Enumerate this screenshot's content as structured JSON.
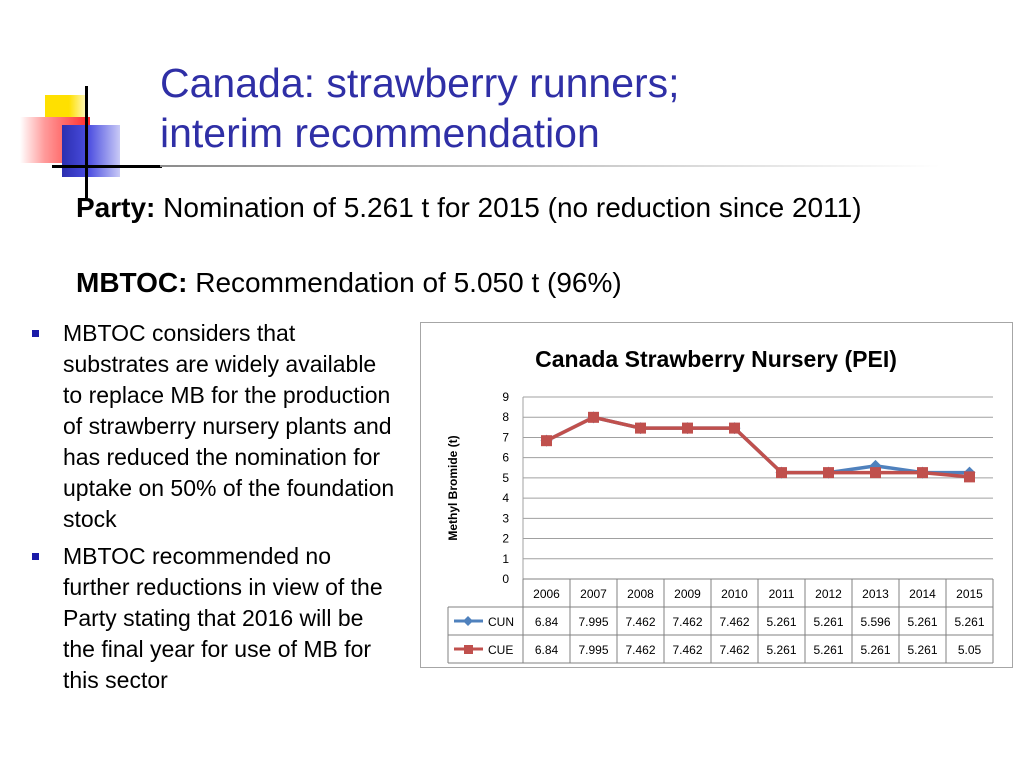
{
  "slide": {
    "title_line1": "Canada: strawberry runners;",
    "title_line2": "interim recommendation",
    "party_label": "Party:",
    "party_text": " Nomination of 5.261 t for 2015 (no reduction since 2011)",
    "mbtoc_label": "MBTOC:",
    "mbtoc_text": " Recommendation of 5.050 t (96%)",
    "bullets": [
      "MBTOC considers that substrates are widely available to replace MB for the production of strawberry nursery plants and has reduced the nomination for uptake on 50% of the foundation stock",
      "MBTOC recommended no further reductions in view of the Party stating that 2016 will be the final year for use of MB for this sector"
    ]
  },
  "colors": {
    "title": "#2f2fa6",
    "cun": "#4f81bd",
    "cue": "#c0504d",
    "bullet": "#1a1aa8"
  },
  "chart_data": {
    "type": "line",
    "title": "Canada Strawberry Nursery (PEI)",
    "ylabel": "Methyl Bromide (t)",
    "xlabel": "",
    "ylim": [
      0,
      9
    ],
    "yticks": [
      0,
      1,
      2,
      3,
      4,
      5,
      6,
      7,
      8,
      9
    ],
    "grid": true,
    "legend": "data-table",
    "categories": [
      "2006",
      "2007",
      "2008",
      "2009",
      "2010",
      "2011",
      "2012",
      "2013",
      "2014",
      "2015"
    ],
    "series": [
      {
        "name": "CUN",
        "color": "#4f81bd",
        "marker": "diamond",
        "values": [
          6.84,
          7.995,
          7.462,
          7.462,
          7.462,
          5.261,
          5.261,
          5.596,
          5.261,
          5.261
        ],
        "labels": [
          "6.84",
          "7.995",
          "7.462",
          "7.462",
          "7.462",
          "5.261",
          "5.261",
          "5.596",
          "5.261",
          "5.261"
        ]
      },
      {
        "name": "CUE",
        "color": "#c0504d",
        "marker": "square",
        "values": [
          6.84,
          7.995,
          7.462,
          7.462,
          7.462,
          5.261,
          5.261,
          5.261,
          5.261,
          5.05
        ],
        "labels": [
          "6.84",
          "7.995",
          "7.462",
          "7.462",
          "7.462",
          "5.261",
          "5.261",
          "5.261",
          "5.261",
          "5.05"
        ]
      }
    ]
  }
}
